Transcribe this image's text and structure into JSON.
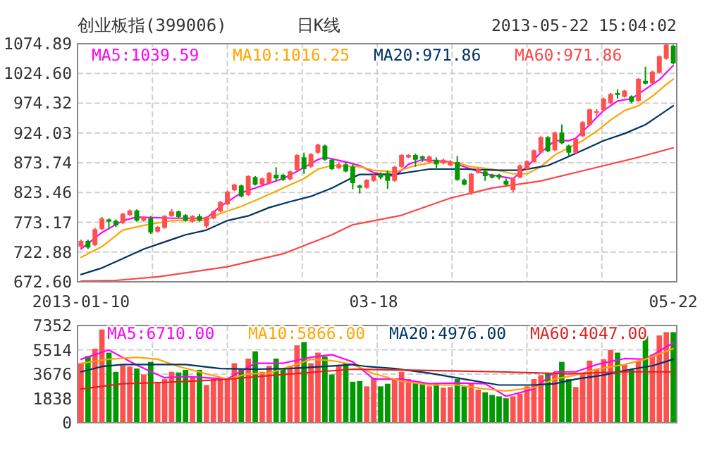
{
  "chart_data": [
    {
      "type": "candlestick",
      "title": "创业板指(399006)",
      "subtitle": "日K线",
      "annotations": [
        "2013-05-22 15:04:02"
      ],
      "categories": [
        "2013-01-10",
        null,
        null,
        null,
        null,
        null,
        null,
        null,
        null,
        null,
        null,
        null,
        null,
        null,
        null,
        null,
        null,
        null,
        null,
        null,
        null,
        null,
        null,
        null,
        null,
        null,
        null,
        null,
        null,
        null,
        null,
        null,
        null,
        null,
        null,
        null,
        null,
        null,
        null,
        null,
        null,
        null,
        "03-18",
        null,
        null,
        null,
        null,
        null,
        null,
        null,
        null,
        null,
        null,
        null,
        null,
        null,
        null,
        null,
        null,
        null,
        null,
        null,
        null,
        null,
        null,
        null,
        null,
        null,
        null,
        null,
        null,
        null,
        null,
        null,
        null,
        null,
        null,
        null,
        null,
        null,
        null,
        null,
        null,
        null,
        null,
        "05-22"
      ],
      "ohlc": [
        [
          732.1,
          744.0,
          729.7,
          741.6
        ],
        [
          741.6,
          744.0,
          728.1,
          730.5
        ],
        [
          734.5,
          763.9,
          732.9,
          761.5
        ],
        [
          761.5,
          782.1,
          759.9,
          779.7
        ],
        [
          778.1,
          779.7,
          761.5,
          774.2
        ],
        [
          775.8,
          778.1,
          765.4,
          767.8
        ],
        [
          771.8,
          789.2,
          770.2,
          787.7
        ],
        [
          785.3,
          794.8,
          783.7,
          793.2
        ],
        [
          793.2,
          794.8,
          774.2,
          775.8
        ],
        [
          775.8,
          783.7,
          774.2,
          782.1
        ],
        [
          779.7,
          783.7,
          753.5,
          755.9
        ],
        [
          757.5,
          767.0,
          755.9,
          765.4
        ],
        [
          763.9,
          785.3,
          762.3,
          783.7
        ],
        [
          783.7,
          795.6,
          782.1,
          791.6
        ],
        [
          791.6,
          793.2,
          780.5,
          782.1
        ],
        [
          785.3,
          786.9,
          774.2,
          775.8
        ],
        [
          774.2,
          785.3,
          772.6,
          783.7
        ],
        [
          783.7,
          786.9,
          774.2,
          775.8
        ],
        [
          766.2,
          783.7,
          763.1,
          782.1
        ],
        [
          779.7,
          793.2,
          778.1,
          791.6
        ],
        [
          791.6,
          809.1,
          790.0,
          807.5
        ],
        [
          803.5,
          826.5,
          802.0,
          825.0
        ],
        [
          827.3,
          838.4,
          825.8,
          836.9
        ],
        [
          835.3,
          836.9,
          815.4,
          817.0
        ],
        [
          819.4,
          852.7,
          817.8,
          851.1
        ],
        [
          849.5,
          851.1,
          835.3,
          836.9
        ],
        [
          836.9,
          848.8,
          835.3,
          847.2
        ],
        [
          839.2,
          858.3,
          837.6,
          856.7
        ],
        [
          853.5,
          866.2,
          843.2,
          847.2
        ],
        [
          853.5,
          855.1,
          843.2,
          844.8
        ],
        [
          845.6,
          860.6,
          844.0,
          859.1
        ],
        [
          861.4,
          888.4,
          859.9,
          886.8
        ],
        [
          882.9,
          890.8,
          855.1,
          863.0
        ],
        [
          867.0,
          890.0,
          865.4,
          888.4
        ],
        [
          890.8,
          905.9,
          889.2,
          904.3
        ],
        [
          902.7,
          904.3,
          877.3,
          878.9
        ],
        [
          878.9,
          880.5,
          861.4,
          863.0
        ],
        [
          864.6,
          874.9,
          863.0,
          871.0
        ],
        [
          871.0,
          874.9,
          857.5,
          859.1
        ],
        [
          867.0,
          871.0,
          828.9,
          839.2
        ],
        [
          835.3,
          836.9,
          821.8,
          831.3
        ],
        [
          831.3,
          846.4,
          829.7,
          844.8
        ],
        [
          843.2,
          855.1,
          841.6,
          853.5
        ],
        [
          855.1,
          857.5,
          845.6,
          848.8
        ],
        [
          856.7,
          860.6,
          829.7,
          843.2
        ],
        [
          843.2,
          868.6,
          841.6,
          867.0
        ],
        [
          867.0,
          888.4,
          865.4,
          886.8
        ],
        [
          882.9,
          888.4,
          881.3,
          886.8
        ],
        [
          886.8,
          889.2,
          867.0,
          878.9
        ],
        [
          884.4,
          886.0,
          875.0,
          880.5
        ],
        [
          875.0,
          886.0,
          873.4,
          884.4
        ],
        [
          878.9,
          882.9,
          861.4,
          871.0
        ],
        [
          872.6,
          880.5,
          871.0,
          878.9
        ],
        [
          869.4,
          878.1,
          867.8,
          876.5
        ],
        [
          874.9,
          885.2,
          843.2,
          844.8
        ],
        [
          844.8,
          847.2,
          835.3,
          836.9
        ],
        [
          823.4,
          856.7,
          819.4,
          855.1
        ],
        [
          856.7,
          864.6,
          855.1,
          863.0
        ],
        [
          859.1,
          861.4,
          843.2,
          851.1
        ],
        [
          853.5,
          855.1,
          847.2,
          848.8
        ],
        [
          853.5,
          855.1,
          845.6,
          848.8
        ],
        [
          843.2,
          847.2,
          835.3,
          836.9
        ],
        [
          827.3,
          848.8,
          823.4,
          847.2
        ],
        [
          848.8,
          871.0,
          847.2,
          869.4
        ],
        [
          863.0,
          878.1,
          861.4,
          876.5
        ],
        [
          875.0,
          896.4,
          873.4,
          894.8
        ],
        [
          890.8,
          918.6,
          889.2,
          917.0
        ],
        [
          917.0,
          918.6,
          891.6,
          893.2
        ],
        [
          894.8,
          926.5,
          893.2,
          924.9
        ],
        [
          924.9,
          938.4,
          905.1,
          906.7
        ],
        [
          902.7,
          904.3,
          884.4,
          890.8
        ],
        [
          890.8,
          916.2,
          889.2,
          914.6
        ],
        [
          918.6,
          944.0,
          917.0,
          942.4
        ],
        [
          937.6,
          965.4,
          936.0,
          963.8
        ],
        [
          958.2,
          964.6,
          952.0,
          960.7
        ],
        [
          962.3,
          983.7,
          960.7,
          982.1
        ],
        [
          974.2,
          991.6,
          972.6,
          990.0
        ],
        [
          991.6,
          997.9,
          982.1,
          988.4
        ],
        [
          985.2,
          997.1,
          983.7,
          995.6
        ],
        [
          986.0,
          987.6,
          974.2,
          976.5
        ],
        [
          978.1,
          1016.9,
          976.5,
          1015.4
        ],
        [
          1012.2,
          1036.0,
          1005.9,
          1007.5
        ],
        [
          1007.8,
          1029.3,
          1006.3,
          1027.7
        ],
        [
          1025.7,
          1055.1,
          1024.1,
          1053.5
        ],
        [
          1049.5,
          1074.8,
          1047.9,
          1073.0
        ],
        [
          1071.5,
          1073.0,
          1040.0,
          1041.6
        ]
      ],
      "colors": [
        "#ff5050",
        "#009900",
        "#ff5050",
        "#ff5050",
        "#009900",
        "#009900",
        "#ff5050",
        "#ff5050",
        "#009900",
        "#ff5050",
        "#009900",
        "#ff5050",
        "#ff5050",
        "#ff5050",
        "#009900",
        "#009900",
        "#ff5050",
        "#009900",
        "#ff5050",
        "#ff5050",
        "#ff5050",
        "#ff5050",
        "#ff5050",
        "#009900",
        "#ff5050",
        "#009900",
        "#ff5050",
        "#ff5050",
        "#009900",
        "#009900",
        "#ff5050",
        "#ff5050",
        "#009900",
        "#ff5050",
        "#ff5050",
        "#009900",
        "#009900",
        "#ff5050",
        "#009900",
        "#009900",
        "#009900",
        "#ff5050",
        "#ff5050",
        "#009900",
        "#009900",
        "#ff5050",
        "#ff5050",
        "#ff5050",
        "#009900",
        "#009900",
        "#ff5050",
        "#009900",
        "#ff5050",
        "#ff5050",
        "#009900",
        "#009900",
        "#ff5050",
        "#ff5050",
        "#009900",
        "#009900",
        "#009900",
        "#009900",
        "#ff5050",
        "#ff5050",
        "#ff5050",
        "#ff5050",
        "#ff5050",
        "#009900",
        "#ff5050",
        "#009900",
        "#009900",
        "#ff5050",
        "#ff5050",
        "#ff5050",
        "#ff5050",
        "#ff5050",
        "#ff5050",
        "#009900",
        "#ff5050",
        "#009900",
        "#ff5050",
        "#009900",
        "#ff5050",
        "#ff5050",
        "#ff5050",
        "#009900"
      ],
      "series": [
        {
          "type": "line",
          "name": "MA5:1039.59",
          "color": "#ff00ff",
          "values": [
            728,
            null,
            null,
            756,
            null,
            null,
            776,
            null,
            782,
            null,
            null,
            null,
            null,
            780,
            null,
            null,
            null,
            null,
            780,
            null,
            800,
            null,
            null,
            823,
            null,
            null,
            835,
            null,
            null,
            847,
            null,
            859,
            null,
            null,
            879,
            883,
            null,
            null,
            875,
            null,
            869,
            null,
            857,
            null,
            null,
            851,
            null,
            871,
            null,
            879,
            null,
            null,
            null,
            875,
            null,
            null,
            863,
            null,
            855,
            null,
            null,
            849,
            847,
            null,
            867,
            null,
            891,
            null,
            911,
            null,
            911,
            915,
            null,
            938,
            null,
            962,
            null,
            978,
            null,
            982,
            null,
            998,
            null,
            1014,
            null,
            1038
          ]
        },
        {
          "type": "line",
          "name": "MA10:1016.25",
          "color": "#ffa500",
          "values": [
            714,
            null,
            null,
            732,
            null,
            null,
            760,
            null,
            null,
            768,
            null,
            null,
            null,
            776,
            null,
            null,
            null,
            null,
            777,
            null,
            788,
            null,
            null,
            800,
            null,
            null,
            815,
            null,
            null,
            831,
            null,
            null,
            847,
            null,
            863,
            null,
            869,
            null,
            null,
            null,
            867,
            null,
            861,
            null,
            null,
            858,
            null,
            null,
            869,
            null,
            null,
            875,
            null,
            null,
            873,
            null,
            867,
            null,
            null,
            863,
            null,
            null,
            855,
            null,
            855,
            null,
            867,
            null,
            887,
            null,
            899,
            null,
            911,
            null,
            927,
            null,
            946,
            null,
            962,
            null,
            970,
            null,
            986,
            null,
            1006,
            1015
          ]
        },
        {
          "type": "line",
          "name": "MA20:971.86",
          "color": "#003366",
          "values": [
            685,
            null,
            null,
            696,
            null,
            null,
            712,
            null,
            null,
            728,
            null,
            null,
            740,
            null,
            null,
            752,
            null,
            null,
            760,
            null,
            null,
            776,
            null,
            null,
            784,
            null,
            null,
            798,
            null,
            null,
            808,
            null,
            null,
            817,
            null,
            null,
            831,
            null,
            null,
            849,
            854,
            null,
            null,
            null,
            null,
            854,
            null,
            null,
            null,
            null,
            863,
            null,
            null,
            null,
            null,
            863,
            null,
            null,
            null,
            null,
            861,
            null,
            null,
            861,
            null,
            865,
            null,
            869,
            null,
            879,
            null,
            null,
            895,
            null,
            null,
            911,
            null,
            null,
            923,
            null,
            null,
            938,
            null,
            954,
            null,
            970
          ]
        },
        {
          "type": "line",
          "name": "MA60:971.86",
          "color": "#ff4444",
          "values": [
            674,
            null,
            null,
            null,
            null,
            675,
            null,
            null,
            null,
            null,
            null,
            681,
            null,
            null,
            null,
            null,
            null,
            null,
            null,
            null,
            null,
            698,
            null,
            null,
            null,
            null,
            null,
            null,
            null,
            720,
            null,
            null,
            null,
            null,
            null,
            null,
            752,
            null,
            null,
            769,
            null,
            null,
            null,
            null,
            null,
            null,
            785,
            null,
            null,
            null,
            null,
            null,
            null,
            814,
            null,
            null,
            null,
            null,
            null,
            831,
            null,
            null,
            null,
            null,
            null,
            null,
            843,
            null,
            null,
            null,
            null,
            null,
            null,
            863,
            null,
            null,
            null,
            null,
            null,
            null,
            883,
            null,
            null,
            null,
            null,
            899
          ]
        }
      ],
      "ylim": [
        672.6,
        1074.89
      ],
      "yticks": [
        {
          "value": 672.6,
          "label": "672.60"
        },
        722.88,
        773.17,
        823.46,
        873.74,
        924.03,
        974.32,
        {
          "value": 1024.6,
          "label": "1024.60"
        },
        1074.89
      ],
      "grid": true,
      "legend": "top"
    },
    {
      "type": "bar",
      "categories": [
        null,
        null,
        null,
        null,
        null,
        null,
        null,
        null,
        null,
        null,
        null,
        null,
        null,
        null,
        null,
        null,
        null,
        null,
        null,
        null,
        null,
        null,
        null,
        null,
        null,
        null,
        null,
        null,
        null,
        null,
        null,
        null,
        null,
        null,
        null,
        null,
        null,
        null,
        null,
        null,
        null,
        null,
        null,
        null,
        null,
        null,
        null,
        null,
        null,
        null,
        null,
        null,
        null,
        null,
        null,
        null,
        null,
        null,
        null,
        null,
        null,
        null,
        null,
        null,
        null,
        null,
        null,
        null,
        null,
        null,
        null,
        null,
        null,
        null,
        null,
        null,
        null,
        null,
        null,
        null,
        null,
        null,
        null,
        null,
        null,
        null
      ],
      "series": [
        {
          "type": "bar",
          "colors": [
            "#ff5050",
            "#009900",
            "#ff5050",
            "#ff5050",
            "#009900",
            "#009900",
            "#ff5050",
            "#ff5050",
            "#009900",
            "#ff5050",
            "#009900",
            "#ff5050",
            "#ff5050",
            "#ff5050",
            "#009900",
            "#009900",
            "#ff5050",
            "#009900",
            "#ff5050",
            "#ff5050",
            "#ff5050",
            "#ff5050",
            "#ff5050",
            "#009900",
            "#ff5050",
            "#009900",
            "#ff5050",
            "#ff5050",
            "#009900",
            "#009900",
            "#ff5050",
            "#ff5050",
            "#009900",
            "#ff5050",
            "#ff5050",
            "#009900",
            "#009900",
            "#ff5050",
            "#009900",
            "#009900",
            "#009900",
            "#ff5050",
            "#ff5050",
            "#009900",
            "#009900",
            "#ff5050",
            "#ff5050",
            "#ff5050",
            "#009900",
            "#009900",
            "#ff5050",
            "#009900",
            "#ff5050",
            "#ff5050",
            "#009900",
            "#009900",
            "#ff5050",
            "#ff5050",
            "#009900",
            "#009900",
            "#009900",
            "#009900",
            "#ff5050",
            "#ff5050",
            "#ff5050",
            "#ff5050",
            "#ff5050",
            "#009900",
            "#ff5050",
            "#009900",
            "#009900",
            "#ff5050",
            "#ff5050",
            "#ff5050",
            "#ff5050",
            "#ff5050",
            "#ff5050",
            "#009900",
            "#ff5050",
            "#009900",
            "#ff5050",
            "#009900",
            "#ff5050",
            "#ff5050",
            "#ff5050",
            "#009900"
          ],
          "values": [
            4500,
            5050,
            5600,
            7050,
            5300,
            3850,
            4350,
            4250,
            4100,
            3650,
            4600,
            3050,
            3300,
            3850,
            3800,
            4000,
            3500,
            4000,
            2850,
            3300,
            3400,
            3300,
            4500,
            4100,
            4850,
            5400,
            3850,
            4300,
            4850,
            4100,
            4300,
            5850,
            6100,
            4500,
            5300,
            5000,
            3650,
            4300,
            4500,
            3100,
            3150,
            2750,
            3400,
            2750,
            2950,
            3300,
            3850,
            3300,
            3000,
            3000,
            2750,
            3000,
            2650,
            2700,
            3300,
            2750,
            3000,
            2500,
            2300,
            2100,
            2000,
            1850,
            2000,
            2200,
            2750,
            3300,
            3600,
            3750,
            3750,
            4600,
            3300,
            2700,
            3750,
            4700,
            4050,
            4800,
            5500,
            5300,
            4400,
            4050,
            4700,
            6600,
            5150,
            6600,
            6850,
            6850
          ]
        },
        {
          "type": "line",
          "name": "MA5:6710.00",
          "color": "#ff00ff",
          "values": [
            4800,
            null,
            null,
            null,
            5500,
            null,
            null,
            null,
            4350,
            null,
            null,
            null,
            3400,
            null,
            null,
            3500,
            null,
            null,
            3400,
            null,
            null,
            3300,
            null,
            null,
            null,
            4500,
            null,
            null,
            null,
            4500,
            null,
            null,
            null,
            4950,
            null,
            null,
            5150,
            null,
            null,
            4600,
            null,
            null,
            3300,
            null,
            null,
            null,
            3300,
            null,
            null,
            null,
            2950,
            null,
            null,
            null,
            3000,
            null,
            null,
            null,
            2950,
            null,
            null,
            2000,
            null,
            null,
            null,
            2550,
            null,
            null,
            3850,
            null,
            null,
            3850,
            null,
            null,
            4400,
            null,
            null,
            null,
            4850,
            null,
            null,
            4800,
            null,
            null,
            null,
            6050
          ]
        },
        {
          "type": "line",
          "name": "MA10:5866.00",
          "color": "#ffa500",
          "values": [
            4500,
            null,
            null,
            null,
            4800,
            null,
            null,
            null,
            4950,
            null,
            null,
            4800,
            null,
            null,
            4250,
            null,
            null,
            null,
            3700,
            null,
            null,
            3300,
            null,
            null,
            3700,
            null,
            null,
            3750,
            null,
            null,
            4250,
            null,
            null,
            4800,
            null,
            null,
            4700,
            null,
            null,
            4400,
            null,
            null,
            3700,
            null,
            null,
            null,
            3150,
            null,
            null,
            null,
            2850,
            null,
            null,
            null,
            2850,
            null,
            null,
            null,
            2550,
            null,
            null,
            2400,
            null,
            null,
            null,
            2650,
            null,
            null,
            3300,
            null,
            null,
            3600,
            null,
            null,
            4050,
            null,
            null,
            null,
            4400,
            null,
            null,
            4800,
            null,
            null,
            null,
            5600
          ]
        },
        {
          "type": "line",
          "name": "MA20:4976.00",
          "color": "#003366",
          "values": [
            3850,
            null,
            null,
            4250,
            null,
            null,
            4400,
            null,
            null,
            null,
            4400,
            null,
            null,
            null,
            null,
            4400,
            null,
            null,
            null,
            null,
            4100,
            null,
            null,
            null,
            null,
            4050,
            null,
            null,
            null,
            null,
            4100,
            null,
            null,
            null,
            null,
            4250,
            null,
            null,
            null,
            4400,
            null,
            4250,
            null,
            null,
            null,
            4100,
            null,
            null,
            null,
            null,
            3750,
            null,
            null,
            null,
            null,
            3300,
            null,
            null,
            null,
            null,
            2850,
            null,
            null,
            null,
            null,
            2850,
            null,
            null,
            2950,
            null,
            null,
            3300,
            null,
            null,
            null,
            3600,
            null,
            null,
            null,
            4050,
            null,
            null,
            4300,
            null,
            null,
            4800
          ]
        },
        {
          "type": "line",
          "name": "MA60:4047.00",
          "color": "#dd2222",
          "values": [
            2550,
            null,
            null,
            2750,
            null,
            null,
            2950,
            null,
            null,
            null,
            null,
            null,
            3050,
            null,
            null,
            null,
            null,
            null,
            null,
            null,
            3250,
            null,
            null,
            null,
            null,
            null,
            null,
            null,
            3600,
            null,
            null,
            null,
            null,
            null,
            3850,
            null,
            null,
            null,
            null,
            4050,
            null,
            null,
            null,
            null,
            null,
            null,
            null,
            null,
            null,
            null,
            3950,
            null,
            null,
            null,
            null,
            null,
            null,
            null,
            null,
            null,
            3850,
            null,
            null,
            null,
            null,
            null,
            null,
            null,
            null,
            null,
            3700,
            null,
            null,
            null,
            null,
            null,
            null,
            null,
            3850,
            null,
            null,
            null,
            null,
            null,
            null,
            3850
          ]
        }
      ],
      "ylim": [
        0,
        7352
      ],
      "yticks": [
        0,
        1838,
        3676,
        5514,
        7352
      ],
      "grid": true,
      "legend": "top",
      "tick_labels": "y"
    }
  ]
}
